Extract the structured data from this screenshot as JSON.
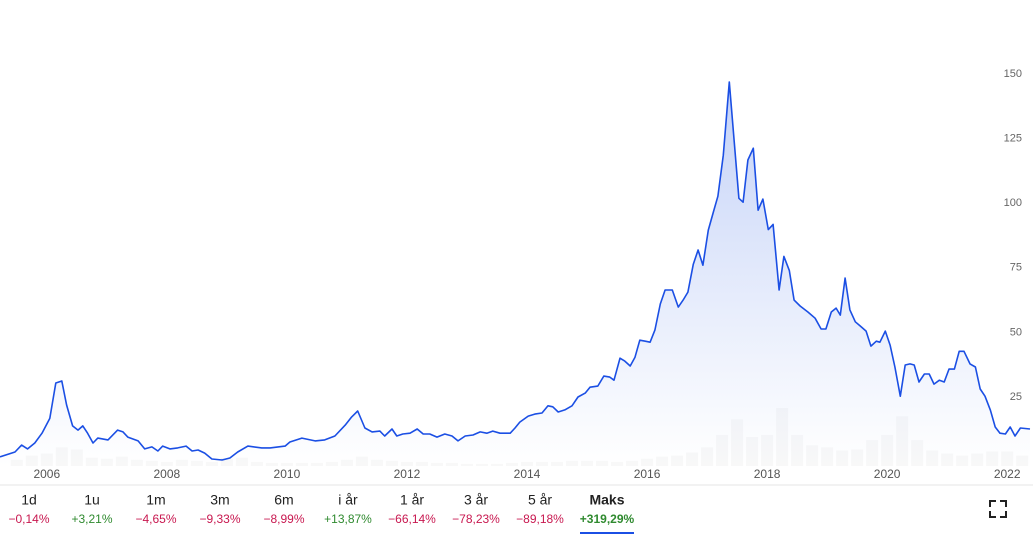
{
  "chart_data": {
    "type": "line",
    "x": [
      2005.22,
      2005.47,
      2005.58,
      2005.68,
      2005.8,
      2005.92,
      2006.05,
      2006.15,
      2006.25,
      2006.33,
      2006.43,
      2006.52,
      2006.6,
      2006.68,
      2006.77,
      2006.85,
      2007.02,
      2007.18,
      2007.27,
      2007.35,
      2007.52,
      2007.63,
      2007.75,
      2007.85,
      2007.93,
      2008.05,
      2008.18,
      2008.32,
      2008.42,
      2008.52,
      2008.63,
      2008.75,
      2008.92,
      2009.05,
      2009.18,
      2009.35,
      2009.58,
      2009.72,
      2009.97,
      2010.05,
      2010.25,
      2010.47,
      2010.63,
      2010.8,
      2010.97,
      2011.08,
      2011.18,
      2011.3,
      2011.42,
      2011.55,
      2011.63,
      2011.75,
      2011.83,
      2011.93,
      2012.05,
      2012.17,
      2012.27,
      2012.38,
      2012.5,
      2012.63,
      2012.75,
      2012.85,
      2012.97,
      2013.1,
      2013.22,
      2013.33,
      2013.43,
      2013.55,
      2013.72,
      2013.8,
      2013.88,
      2014.02,
      2014.13,
      2014.25,
      2014.35,
      2014.43,
      2014.52,
      2014.63,
      2014.75,
      2014.85,
      2014.97,
      2015.05,
      2015.18,
      2015.28,
      2015.38,
      2015.45,
      2015.55,
      2015.63,
      2015.72,
      2015.8,
      2015.88,
      2015.97,
      2016.05,
      2016.13,
      2016.22,
      2016.3,
      2016.42,
      2016.52,
      2016.6,
      2016.68,
      2016.77,
      2016.85,
      2016.93,
      2017.02,
      2017.1,
      2017.18,
      2017.27,
      2017.37,
      2017.45,
      2017.53,
      2017.6,
      2017.68,
      2017.77,
      2017.85,
      2017.93,
      2018.02,
      2018.1,
      2018.2,
      2018.28,
      2018.37,
      2018.45,
      2018.55,
      2018.68,
      2018.8,
      2018.9,
      2018.98,
      2019.07,
      2019.15,
      2019.22,
      2019.3,
      2019.38,
      2019.47,
      2019.55,
      2019.65,
      2019.73,
      2019.82,
      2019.88,
      2019.97,
      2020.05,
      2020.13,
      2020.22,
      2020.3,
      2020.38,
      2020.45,
      2020.53,
      2020.62,
      2020.7,
      2020.78,
      2020.87,
      2020.95,
      2021.03,
      2021.12,
      2021.2,
      2021.28,
      2021.38,
      2021.47,
      2021.55,
      2021.63,
      2021.72,
      2021.8,
      2021.88,
      2021.97,
      2022.05,
      2022.13,
      2022.22,
      2022.38
    ],
    "values": [
      1.8,
      3.7,
      6.4,
      4.9,
      7.2,
      11,
      16.7,
      30.4,
      31.2,
      21.9,
      13.8,
      12.2,
      13.8,
      11,
      7.2,
      9.1,
      8.4,
      12.2,
      11.5,
      9.5,
      8,
      4.9,
      5.7,
      4.1,
      6,
      4.9,
      5.3,
      6,
      4.1,
      4.5,
      3.3,
      1,
      0.6,
      1.4,
      3.7,
      6,
      5.3,
      5.3,
      6,
      7.6,
      9.1,
      8,
      8.4,
      9.9,
      14.1,
      17.3,
      19.6,
      13,
      11.5,
      11.8,
      9.9,
      12.6,
      9.9,
      10.7,
      11,
      12.6,
      10.7,
      10.7,
      9.5,
      10.7,
      9.9,
      8,
      9.9,
      10.3,
      11.5,
      11,
      11.8,
      11,
      11,
      13,
      15.3,
      17.6,
      18.4,
      18.8,
      21.6,
      21.2,
      19.2,
      20,
      21.6,
      25,
      26.5,
      28.8,
      29.2,
      33.1,
      32.7,
      31.5,
      40,
      38.9,
      37,
      40.4,
      47,
      46.6,
      46.2,
      50.9,
      61,
      66.4,
      66.4,
      59.8,
      62.5,
      65.6,
      76.4,
      81.9,
      76,
      89.6,
      96.2,
      102.7,
      118.6,
      146.9,
      124.4,
      101.9,
      100.4,
      116.7,
      121.3,
      97.3,
      101.6,
      89.8,
      91.8,
      66.4,
      79.4,
      74,
      62.5,
      60.2,
      57.9,
      55.5,
      51.3,
      51.3,
      57.9,
      59.4,
      56.7,
      71,
      58.7,
      54.1,
      52.5,
      50.5,
      44.7,
      46.6,
      46.2,
      50.5,
      45.1,
      36.6,
      25.3,
      37.4,
      37.8,
      37.4,
      30.8,
      33.9,
      33.9,
      30,
      31.5,
      30.8,
      35.8,
      35.8,
      42.7,
      42.7,
      37.8,
      36.6,
      28.1,
      25.3,
      19.9,
      13.4,
      11,
      10.7,
      13.4,
      9.9,
      13,
      12.6
    ],
    "color": "#1b4fe4",
    "volume": {
      "color": "#d3d3d3",
      "x": [
        2005.5,
        2005.75,
        2006.0,
        2006.25,
        2006.5,
        2006.75,
        2007.0,
        2007.25,
        2007.5,
        2007.75,
        2008.0,
        2008.25,
        2008.5,
        2008.75,
        2009.0,
        2009.25,
        2009.5,
        2009.75,
        2010.0,
        2010.25,
        2010.5,
        2010.75,
        2011.0,
        2011.25,
        2011.5,
        2011.75,
        2012.0,
        2012.25,
        2012.5,
        2012.75,
        2013.0,
        2013.25,
        2013.5,
        2013.75,
        2014.0,
        2014.25,
        2014.5,
        2014.75,
        2015.0,
        2015.25,
        2015.5,
        2015.75,
        2016.0,
        2016.25,
        2016.5,
        2016.75,
        2017.0,
        2017.25,
        2017.5,
        2017.75,
        2018.0,
        2018.25,
        2018.5,
        2018.75,
        2019.0,
        2019.25,
        2019.5,
        2019.75,
        2020.0,
        2020.25,
        2020.5,
        2020.75,
        2021.0,
        2021.25,
        2021.5,
        2021.75,
        2022.0,
        2022.25
      ],
      "values": [
        6,
        10,
        12,
        18,
        16,
        8,
        7,
        9,
        6,
        5,
        4,
        6,
        5,
        4,
        7,
        8,
        4,
        3,
        3,
        3,
        3,
        4,
        6,
        9,
        6,
        5,
        4,
        4,
        3,
        3,
        2,
        2,
        2,
        3,
        4,
        4,
        4,
        5,
        5,
        5,
        4,
        5,
        7,
        9,
        10,
        13,
        18,
        30,
        45,
        28,
        30,
        56,
        30,
        20,
        18,
        15,
        16,
        25,
        30,
        48,
        25,
        15,
        12,
        10,
        12,
        14,
        14,
        10
      ]
    },
    "xlim": [
      2005.22,
      2022.38
    ],
    "xticks": [
      2006,
      2008,
      2010,
      2012,
      2014,
      2016,
      2018,
      2020,
      2022
    ],
    "ylim": [
      0,
      150
    ],
    "yticks": [
      25,
      50,
      75,
      100,
      125,
      150
    ],
    "tabs": [
      {
        "label": "1d",
        "change": "−0,14%"
      },
      {
        "label": "1u",
        "change": "+3,21%"
      },
      {
        "label": "1m",
        "change": "−4,65%"
      },
      {
        "label": "3m",
        "change": "−9,33%"
      },
      {
        "label": "6m",
        "change": "−8,99%"
      },
      {
        "label": "i år",
        "change": "+13,87%"
      },
      {
        "label": "1 år",
        "change": "−66,14%"
      },
      {
        "label": "3 år",
        "change": "−78,23%"
      },
      {
        "label": "5 år",
        "change": "−89,18%"
      },
      {
        "label": "Maks",
        "change": "+319,29%"
      }
    ],
    "selected_tab": 9
  }
}
